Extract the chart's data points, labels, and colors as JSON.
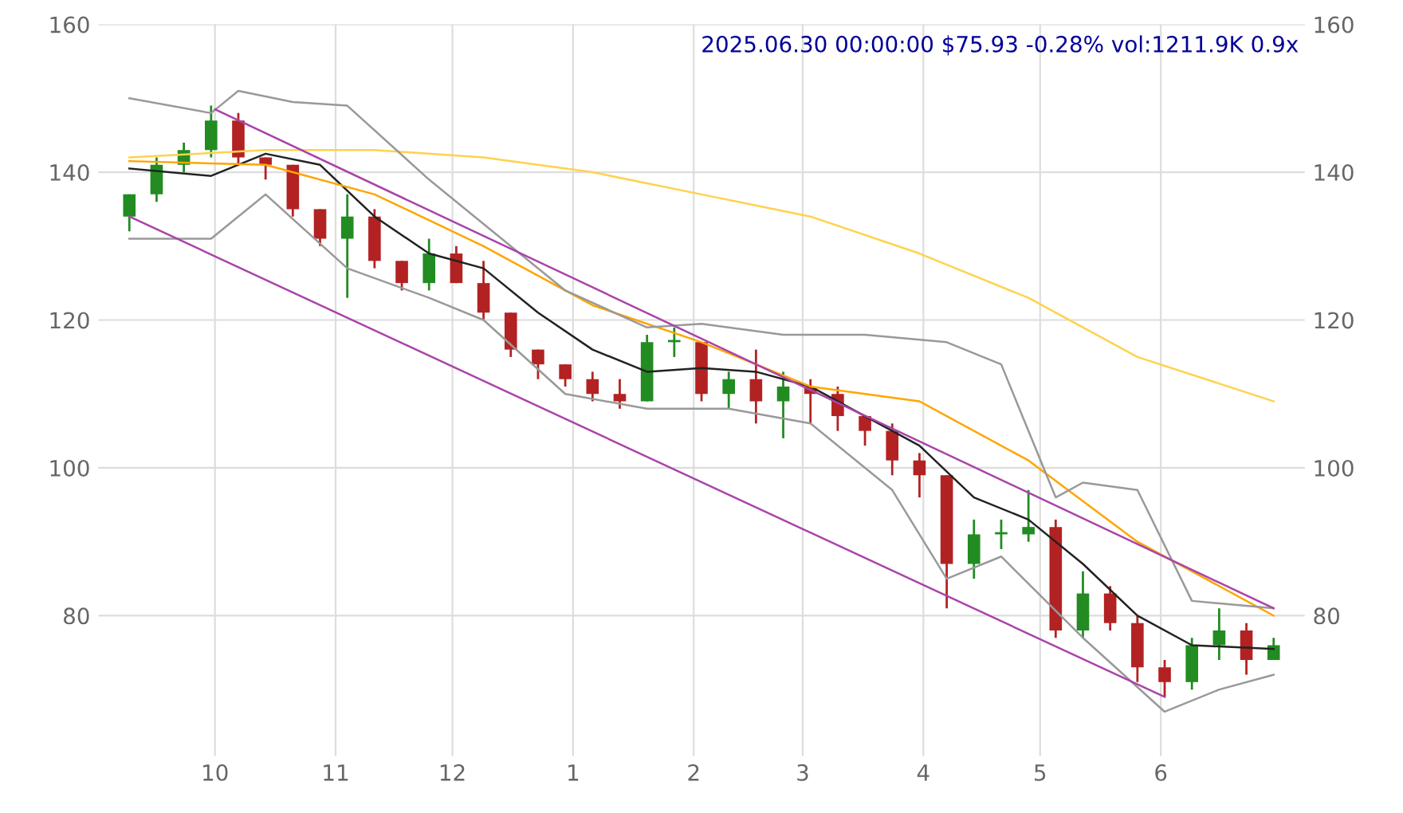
{
  "chart_data": {
    "type": "candlestick",
    "title": "2025.06.30 00:00:00 $75.93 -0.28% vol:1211.9K 0.9x",
    "x": [
      "2024-09-09",
      "2024-09-16",
      "2024-09-23",
      "2024-09-30",
      "2024-10-07",
      "2024-10-14",
      "2024-10-21",
      "2024-10-28",
      "2024-11-04",
      "2024-11-11",
      "2024-11-18",
      "2024-11-25",
      "2024-12-02",
      "2024-12-09",
      "2024-12-16",
      "2024-12-23",
      "2024-12-30",
      "2025-01-06",
      "2025-01-13",
      "2025-01-20",
      "2025-01-27",
      "2025-02-03",
      "2025-02-10",
      "2025-02-17",
      "2025-02-24",
      "2025-03-03",
      "2025-03-10",
      "2025-03-17",
      "2025-03-24",
      "2025-03-31",
      "2025-04-07",
      "2025-04-14",
      "2025-04-21",
      "2025-04-28",
      "2025-05-05",
      "2025-05-12",
      "2025-05-19",
      "2025-05-26",
      "2025-06-02",
      "2025-06-09",
      "2025-06-16",
      "2025-06-23",
      "2025-06-30"
    ],
    "ohlc": [
      [
        134,
        137,
        132,
        137
      ],
      [
        137,
        142,
        136,
        141
      ],
      [
        141,
        144,
        140,
        143
      ],
      [
        143,
        149,
        142,
        147
      ],
      [
        147,
        148,
        141,
        142
      ],
      [
        142,
        142,
        139,
        141
      ],
      [
        141,
        141,
        134,
        135
      ],
      [
        135,
        135,
        130,
        131
      ],
      [
        131,
        137,
        123,
        134
      ],
      [
        134,
        135,
        127,
        128
      ],
      [
        128,
        128,
        124,
        125
      ],
      [
        125,
        131,
        124,
        129
      ],
      [
        129,
        130,
        125,
        125
      ],
      [
        125,
        128,
        120,
        121
      ],
      [
        121,
        121,
        115,
        116
      ],
      [
        116,
        116,
        112,
        114
      ],
      [
        114,
        114,
        111,
        112
      ],
      [
        112,
        113,
        109,
        110
      ],
      [
        110,
        112,
        108,
        109
      ],
      [
        109,
        118,
        109,
        117
      ],
      [
        117,
        119,
        115,
        117
      ],
      [
        117,
        117,
        109,
        110
      ],
      [
        110,
        113,
        108,
        112
      ],
      [
        112,
        116,
        106,
        109
      ],
      [
        109,
        113,
        104,
        111
      ],
      [
        111,
        112,
        106,
        110
      ],
      [
        110,
        111,
        105,
        107
      ],
      [
        107,
        107,
        103,
        105
      ],
      [
        105,
        106,
        99,
        101
      ],
      [
        101,
        102,
        96,
        99
      ],
      [
        99,
        99,
        81,
        87
      ],
      [
        87,
        93,
        85,
        91
      ],
      [
        91,
        93,
        89,
        91
      ],
      [
        91,
        97,
        90,
        92
      ],
      [
        92,
        93,
        77,
        78
      ],
      [
        78,
        86,
        77,
        83
      ],
      [
        83,
        84,
        78,
        79
      ],
      [
        79,
        80,
        71,
        73
      ],
      [
        73,
        74,
        69,
        71
      ],
      [
        71,
        77,
        70,
        76
      ],
      [
        76,
        81,
        74,
        78
      ],
      [
        78,
        79,
        72,
        74
      ],
      [
        74,
        77,
        74,
        76
      ]
    ],
    "colors": [
      "#228b22",
      "#228b22",
      "#228b22",
      "#228b22",
      "#b22222",
      "#b22222",
      "#b22222",
      "#b22222",
      "#228b22",
      "#b22222",
      "#b22222",
      "#228b22",
      "#b22222",
      "#b22222",
      "#b22222",
      "#b22222",
      "#b22222",
      "#b22222",
      "#b22222",
      "#228b22",
      "#228b22",
      "#b22222",
      "#228b22",
      "#b22222",
      "#228b22",
      "#b22222",
      "#b22222",
      "#b22222",
      "#b22222",
      "#b22222",
      "#b22222",
      "#228b22",
      "#228b22",
      "#228b22",
      "#b22222",
      "#228b22",
      "#b22222",
      "#b22222",
      "#b22222",
      "#228b22",
      "#228b22",
      "#b22222",
      "#228b22"
    ],
    "series": [
      {
        "type": "line",
        "color": "#222222",
        "x": [
          "2024-09-09",
          "2024-09-30",
          "2024-10-14",
          "2024-10-28",
          "2024-11-11",
          "2024-11-25",
          "2024-12-09",
          "2024-12-23",
          "2025-01-06",
          "2025-01-20",
          "2025-02-03",
          "2025-02-17",
          "2025-03-03",
          "2025-03-17",
          "2025-03-31",
          "2025-04-14",
          "2025-04-28",
          "2025-05-12",
          "2025-05-26",
          "2025-06-09",
          "2025-06-30"
        ],
        "values": [
          140.5,
          139.5,
          142.5,
          141,
          134,
          129,
          127,
          121,
          116,
          113,
          113.5,
          113,
          111,
          107,
          103,
          96,
          93,
          87,
          80,
          76,
          75.5
        ]
      },
      {
        "type": "line",
        "color": "#ffa500",
        "x": [
          "2024-09-09",
          "2024-10-14",
          "2024-11-11",
          "2024-12-09",
          "2025-01-06",
          "2025-02-03",
          "2025-03-03",
          "2025-03-31",
          "2025-04-28",
          "2025-05-26",
          "2025-06-30"
        ],
        "values": [
          141.5,
          141,
          137,
          130,
          122,
          117,
          111,
          109,
          101,
          90,
          80
        ]
      },
      {
        "type": "line",
        "color": "#ffd24d",
        "x": [
          "2024-09-09",
          "2024-10-14",
          "2024-11-11",
          "2024-12-09",
          "2025-01-06",
          "2025-02-03",
          "2025-03-03",
          "2025-03-31",
          "2025-04-28",
          "2025-05-26",
          "2025-06-30"
        ],
        "values": [
          142,
          143,
          143,
          142,
          140,
          137,
          134,
          129,
          123,
          115,
          109
        ]
      },
      {
        "type": "line",
        "color": "#999999",
        "x": [
          "2024-09-09",
          "2024-09-30",
          "2024-10-07",
          "2024-10-21",
          "2024-11-04",
          "2024-11-25",
          "2024-12-09",
          "2024-12-30",
          "2025-01-20",
          "2025-02-03",
          "2025-02-24",
          "2025-03-17",
          "2025-04-07",
          "2025-04-21",
          "2025-05-05",
          "2025-05-12",
          "2025-05-26",
          "2025-06-09",
          "2025-06-30"
        ],
        "values": [
          150,
          148,
          151,
          149.5,
          149,
          139,
          133,
          124,
          119,
          119.5,
          118,
          118,
          117,
          114,
          96,
          98,
          97,
          82,
          81
        ]
      },
      {
        "type": "line",
        "color": "#999999",
        "x": [
          "2024-09-09",
          "2024-09-30",
          "2024-10-14",
          "2024-11-04",
          "2024-11-25",
          "2024-12-09",
          "2024-12-30",
          "2025-01-20",
          "2025-02-10",
          "2025-03-03",
          "2025-03-24",
          "2025-04-07",
          "2025-04-21",
          "2025-05-12",
          "2025-06-02",
          "2025-06-16",
          "2025-06-30"
        ],
        "values": [
          131,
          131,
          137,
          127,
          123,
          120,
          110,
          108,
          108,
          106,
          97,
          85,
          88,
          77,
          67,
          70,
          72
        ]
      },
      {
        "type": "line",
        "color": "#aa44aa",
        "x": [
          "2024-10-01",
          "2025-06-30"
        ],
        "values": [
          148.5,
          81
        ]
      },
      {
        "type": "line",
        "color": "#aa44aa",
        "x": [
          "2024-09-09",
          "2025-06-02"
        ],
        "values": [
          134,
          69
        ]
      }
    ],
    "xlim": [
      "2024-09-01",
      "2025-07-08"
    ],
    "xticks": [
      {
        "value": "2024-10-01",
        "label": "10"
      },
      {
        "value": "2024-11-01",
        "label": "11"
      },
      {
        "value": "2024-12-01",
        "label": "12"
      },
      {
        "value": "2025-01-01",
        "label": "1"
      },
      {
        "value": "2025-02-01",
        "label": "2"
      },
      {
        "value": "2025-03-01",
        "label": "3"
      },
      {
        "value": "2025-04-01",
        "label": "4"
      },
      {
        "value": "2025-05-01",
        "label": "5"
      },
      {
        "value": "2025-06-01",
        "label": "6"
      }
    ],
    "ylim": [
      61,
      160
    ],
    "yticks": [
      80,
      100,
      120,
      140,
      160
    ],
    "y2lim": [
      61,
      160
    ],
    "y2ticks": [
      80,
      100,
      120,
      140,
      160
    ],
    "grid": true
  }
}
